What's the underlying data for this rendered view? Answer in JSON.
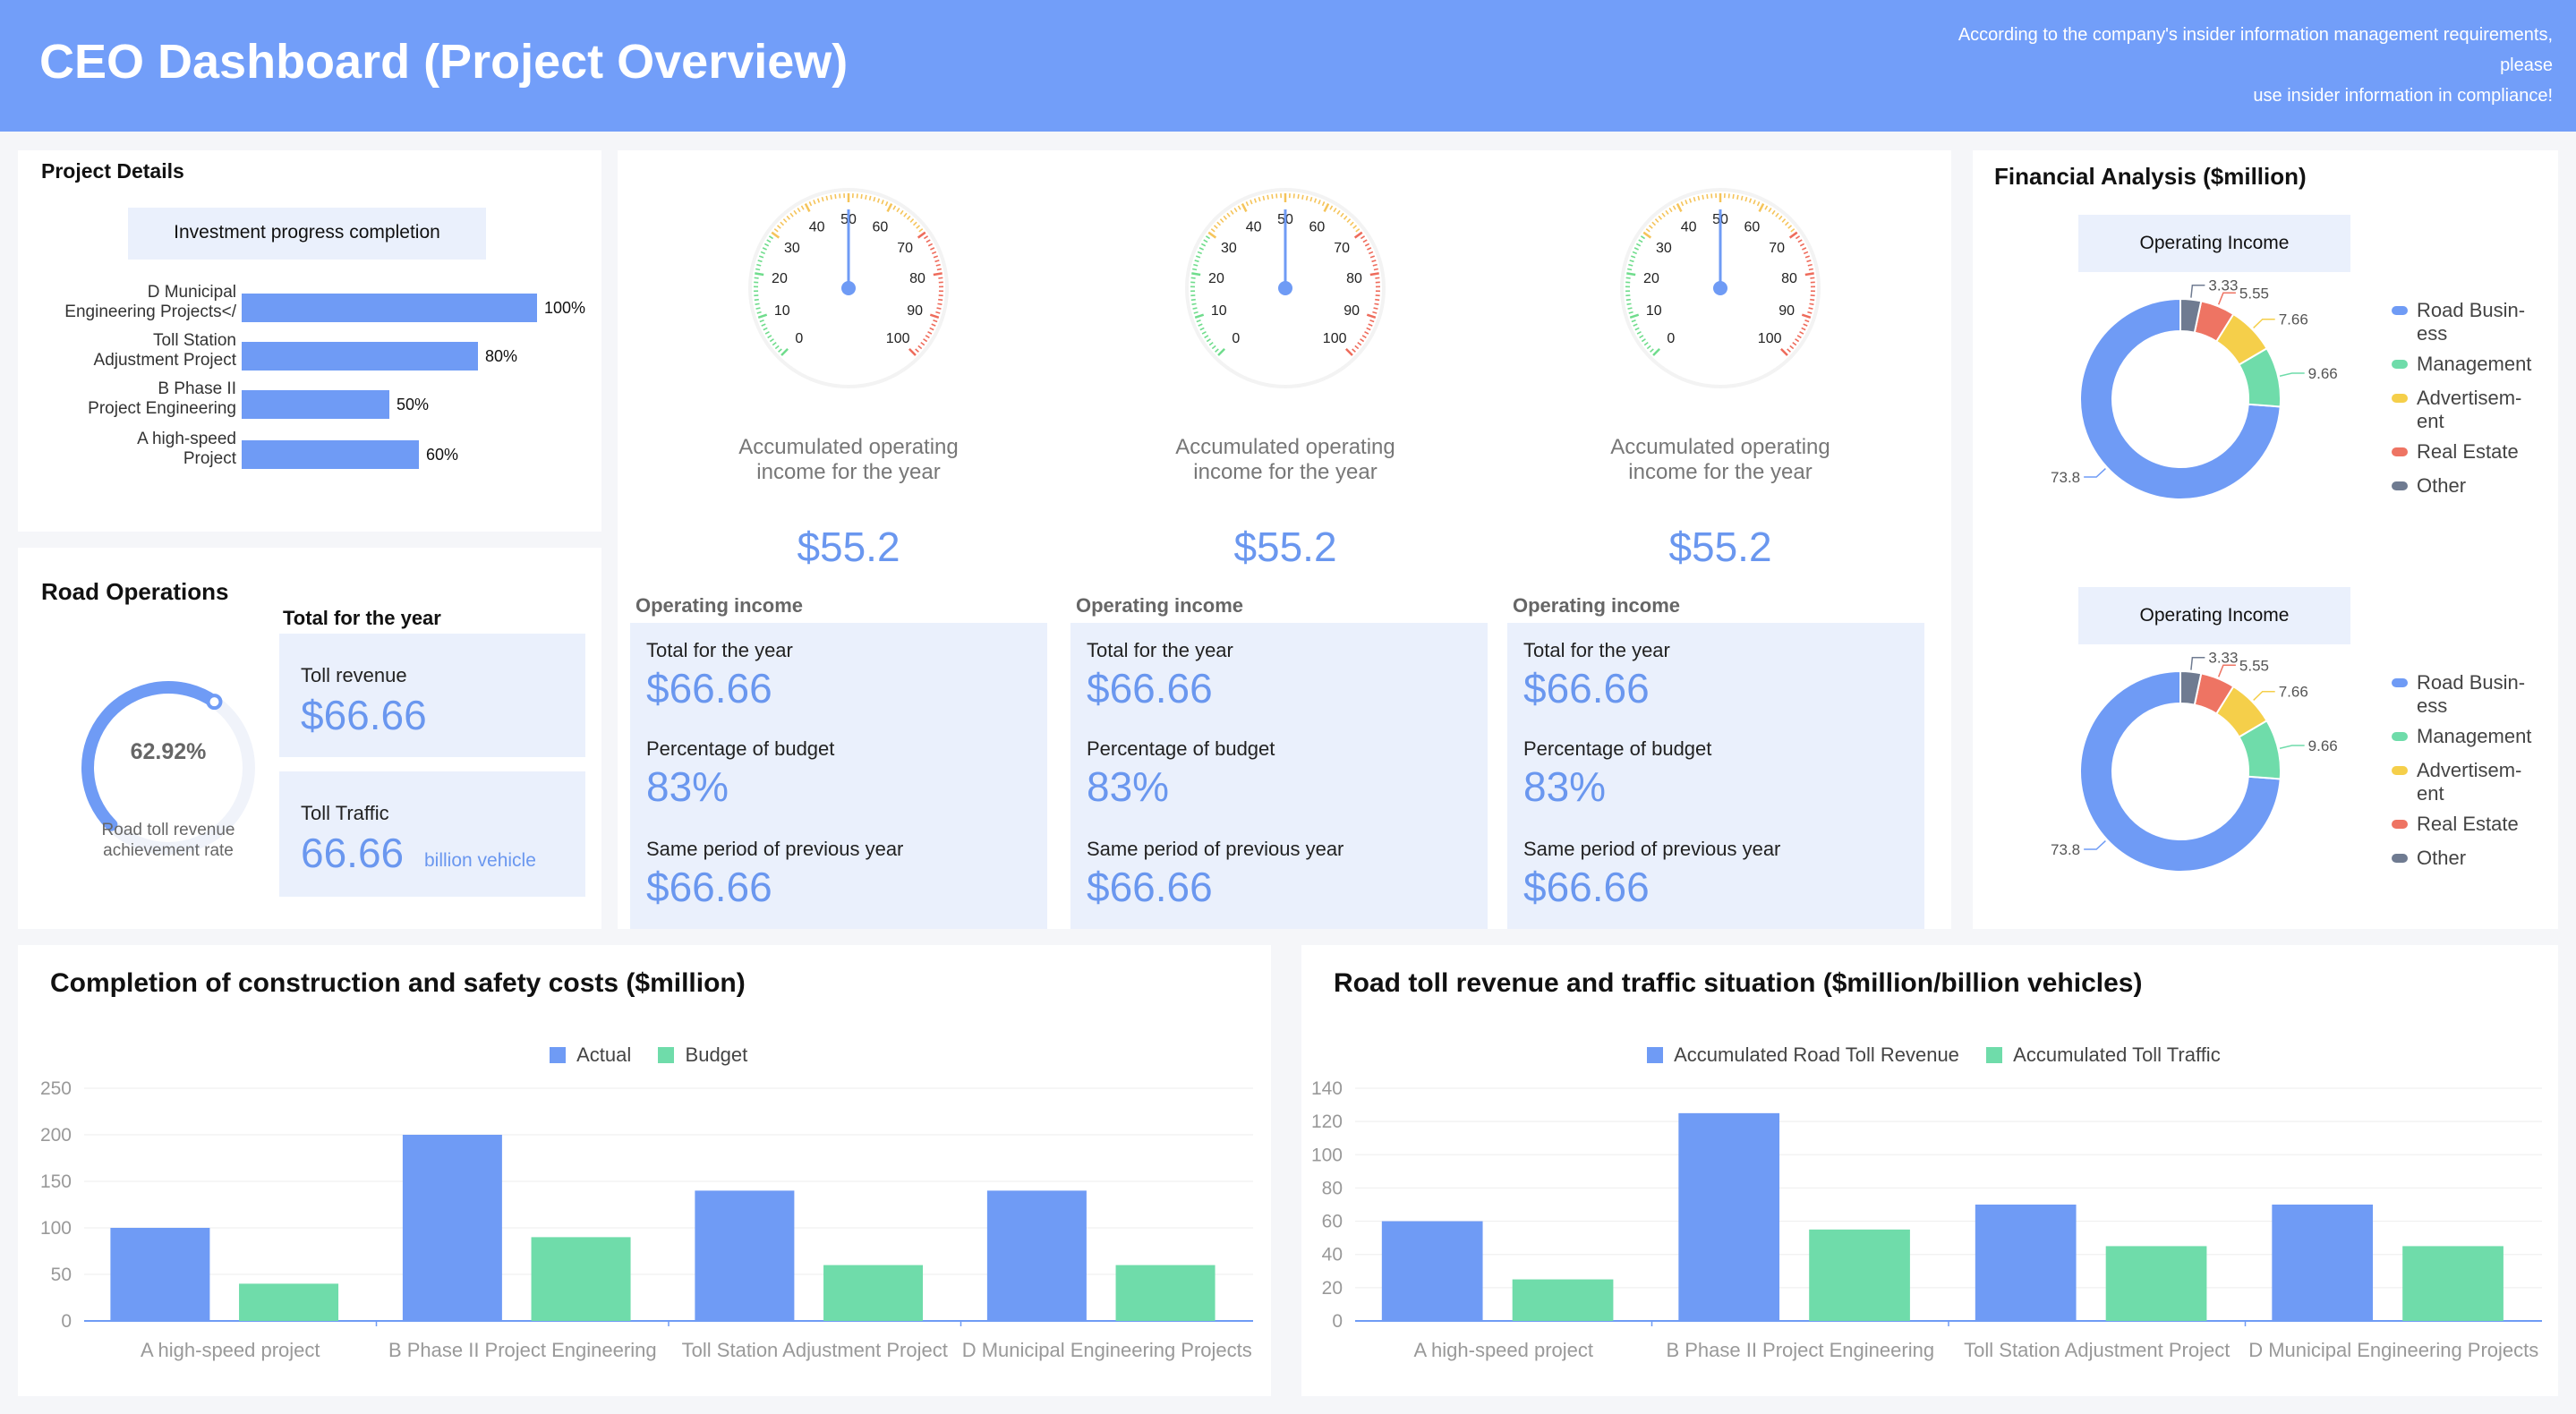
{
  "header": {
    "title": "CEO Dashboard (Project Overview)",
    "notice_line1": "According to the company's insider information management requirements,",
    "notice_line2": "please",
    "notice_line3": "use insider information in compliance!"
  },
  "project_details": {
    "title": "Project Details",
    "chart_title": "Investment progress completion",
    "bars": [
      {
        "label1": "D Municipal",
        "label2": "Engineering Projects</",
        "value": 100,
        "value_label": "100%"
      },
      {
        "label1": "Toll Station",
        "label2": "Adjustment Project",
        "value": 80,
        "value_label": "80%"
      },
      {
        "label1": "B Phase II",
        "label2": "Project Engineering",
        "value": 50,
        "value_label": "50%"
      },
      {
        "label1": "A high-speed",
        "label2": "Project",
        "value": 60,
        "value_label": "60%"
      }
    ]
  },
  "road_operations": {
    "title": "Road Operations",
    "total_label": "Total for the year",
    "gauge_value": 62.92,
    "gauge_text": "62.92%",
    "gauge_caption1": "Road toll revenue",
    "gauge_caption2": "achievement rate",
    "toll_revenue_label": "Toll revenue",
    "toll_revenue_value": "$66.66",
    "toll_traffic_label": "Toll Traffic",
    "toll_traffic_value": "66.66",
    "toll_traffic_unit": "billion vehicle"
  },
  "gauges": [
    {
      "value": 50,
      "ticks": [
        "0",
        "10",
        "20",
        "30",
        "40",
        "50",
        "60",
        "70",
        "80",
        "90",
        "100"
      ],
      "caption1": "Accumulated operating",
      "caption2": "income for the year",
      "amount": "$55.2"
    },
    {
      "value": 50,
      "ticks": [
        "0",
        "10",
        "20",
        "30",
        "40",
        "50",
        "60",
        "70",
        "80",
        "90",
        "100"
      ],
      "caption1": "Accumulated operating",
      "caption2": "income for the year",
      "amount": "$55.2"
    },
    {
      "value": 50,
      "ticks": [
        "0",
        "10",
        "20",
        "30",
        "40",
        "50",
        "60",
        "70",
        "80",
        "90",
        "100"
      ],
      "caption1": "Accumulated operating",
      "caption2": "income for the year",
      "amount": "$55.2"
    }
  ],
  "income_panels": [
    {
      "heading": "Operating income",
      "total_label": "Total for the year",
      "total_value": "$66.66",
      "budget_label": "Percentage of budget",
      "budget_value": "83%",
      "prev_label": "Same period of previous year",
      "prev_value": "$66.66"
    },
    {
      "heading": "Operating income",
      "total_label": "Total for the year",
      "total_value": "$66.66",
      "budget_label": "Percentage of budget",
      "budget_value": "83%",
      "prev_label": "Same period of previous year",
      "prev_value": "$66.66"
    },
    {
      "heading": "Operating income",
      "total_label": "Total for the year",
      "total_value": "$66.66",
      "budget_label": "Percentage of budget",
      "budget_value": "83%",
      "prev_label": "Same period of previous year",
      "prev_value": "$66.66"
    }
  ],
  "financial": {
    "title": "Financial Analysis ($million)",
    "donuts": [
      {
        "title": "Operating Income",
        "labels": [
          "73.8",
          "9.66",
          "7.66",
          "5.55",
          "3.33"
        ]
      },
      {
        "title": "Operating Income",
        "labels": [
          "73.8",
          "9.66",
          "7.66",
          "5.55",
          "3.33"
        ]
      }
    ],
    "legend": [
      {
        "line1": "Road Busin-",
        "line2": "ess",
        "color": "#6f9bf5"
      },
      {
        "line1": "Management",
        "line2": "",
        "color": "#6fdcaa"
      },
      {
        "line1": "Advertisem-",
        "line2": "ent",
        "color": "#f5cf4a"
      },
      {
        "line1": "Real Estate",
        "line2": "",
        "color": "#ee7463"
      },
      {
        "line1": "Other",
        "line2": "",
        "color": "#6f7b91"
      }
    ]
  },
  "construction": {
    "title": "Completion of construction and safety costs ($million)",
    "legend_actual": "Actual",
    "legend_budget": "Budget"
  },
  "toll": {
    "title": "Road toll revenue and traffic situation ($million/billion vehicles)",
    "legend_revenue": "Accumulated Road Toll Revenue",
    "legend_traffic": "Accumulated Toll Traffic"
  },
  "colors": {
    "primary": "#6f9bf5",
    "secondary": "#6fdcaa",
    "header": "#729ef9"
  },
  "chart_data": [
    {
      "type": "donut",
      "title": "Operating Income",
      "categories": [
        "Road Business",
        "Management",
        "Advertisement",
        "Real Estate",
        "Other"
      ],
      "values": [
        73.8,
        9.66,
        7.66,
        5.55,
        3.33
      ]
    },
    {
      "type": "donut",
      "title": "Operating Income",
      "categories": [
        "Road Business",
        "Management",
        "Advertisement",
        "Real Estate",
        "Other"
      ],
      "values": [
        73.8,
        9.66,
        7.66,
        5.55,
        3.33
      ]
    },
    {
      "type": "bar",
      "title": "Completion of construction and safety costs ($million)",
      "categories": [
        "A high-speed project",
        "B Phase II Project Engineering",
        "Toll Station Adjustment Project",
        "D Municipal Engineering Projects"
      ],
      "series": [
        {
          "name": "Actual",
          "values": [
            100,
            200,
            140,
            140
          ]
        },
        {
          "name": "Budget",
          "values": [
            40,
            90,
            60,
            60
          ]
        }
      ],
      "yticks": [
        "0",
        "50",
        "100",
        "150",
        "200",
        "250"
      ],
      "ylim": [
        0,
        250
      ]
    },
    {
      "type": "bar",
      "title": "Road toll revenue and traffic situation ($million/billion vehicles)",
      "categories": [
        "A high-speed project",
        "B Phase II Project Engineering",
        "Toll Station Adjustment Project",
        "D Municipal Engineering Projects"
      ],
      "series": [
        {
          "name": "Accumulated Road Toll Revenue",
          "values": [
            60,
            125,
            70,
            70
          ]
        },
        {
          "name": "Accumulated Toll Traffic",
          "values": [
            25,
            55,
            45,
            45
          ]
        }
      ],
      "yticks": [
        "0",
        "20",
        "40",
        "60",
        "80",
        "100",
        "120",
        "140"
      ],
      "ylim": [
        0,
        140
      ]
    },
    {
      "type": "bar",
      "title": "Investment progress completion",
      "categories": [
        "D Municipal Engineering Projects",
        "Toll Station Adjustment Project",
        "B Phase II Project Engineering",
        "A high-speed Project"
      ],
      "values": [
        100,
        80,
        50,
        60
      ],
      "xlim": [
        0,
        100
      ]
    }
  ]
}
